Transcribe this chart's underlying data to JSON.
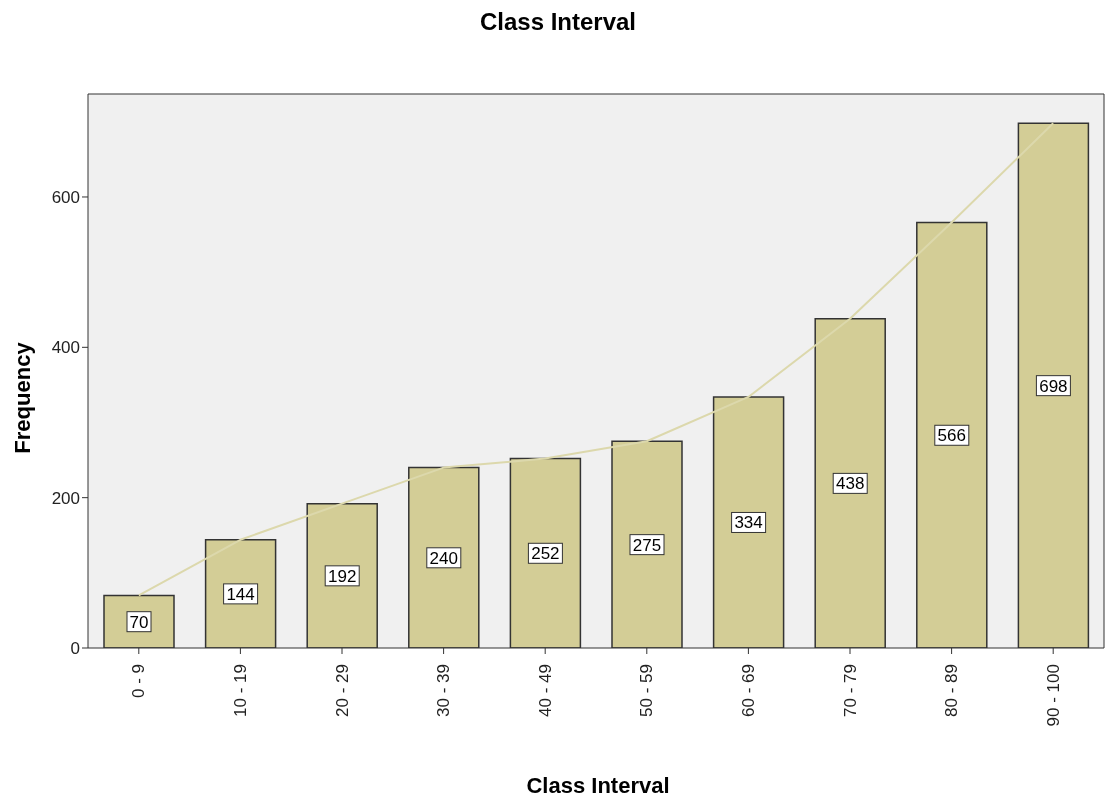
{
  "chart_data": {
    "type": "bar",
    "title": "Class Interval",
    "xlabel": "Class Interval",
    "ylabel": "Frequency",
    "categories": [
      "0 - 9",
      "10 - 19",
      "20 - 29",
      "30 - 39",
      "40 - 49",
      "50 - 59",
      "60 - 69",
      "70 - 79",
      "80 - 89",
      "90 - 100"
    ],
    "series": [
      {
        "color": "#d3cd96",
        "values": [
          70,
          144,
          192,
          240,
          252,
          275,
          334,
          438,
          566,
          698
        ],
        "value_labels": [
          "70",
          "144",
          "192",
          "240",
          "252",
          "275",
          "334",
          "438",
          "566",
          "698"
        ]
      },
      {
        "type": "line",
        "color": "#dcd8ac",
        "values": [
          70,
          144,
          192,
          240,
          252,
          275,
          334,
          438,
          566,
          698
        ]
      }
    ],
    "ylim": [
      0,
      737
    ],
    "yticks": [
      0,
      200,
      400,
      600
    ],
    "grid": false,
    "legend": false,
    "marker": "none"
  }
}
